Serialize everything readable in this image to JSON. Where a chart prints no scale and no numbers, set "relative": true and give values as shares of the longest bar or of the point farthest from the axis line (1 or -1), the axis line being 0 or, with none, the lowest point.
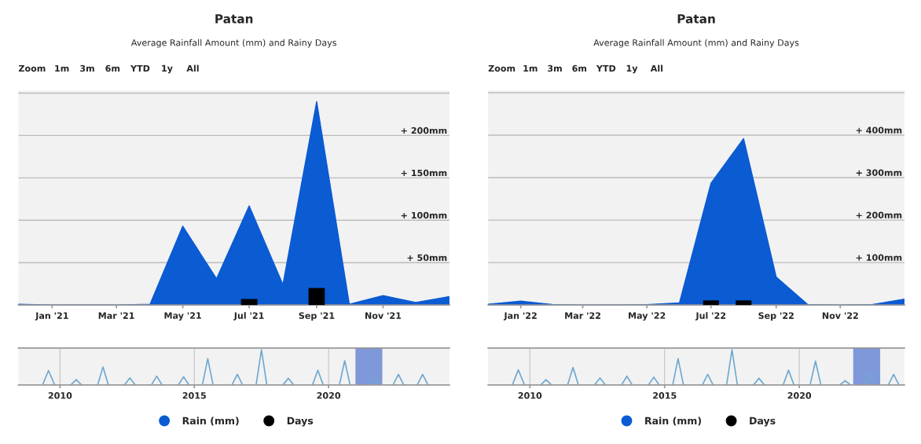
{
  "chart_data": [
    {
      "type": "area",
      "title": "Patan",
      "subtitle": "Average Rainfall Amount (mm) and Rainy Days",
      "annotations": [
        "Zoom",
        "1m",
        "3m",
        "6m",
        "YTD",
        "1y",
        "All"
      ],
      "x": [
        "2020-12",
        "2021-01",
        "2021-02",
        "2021-03",
        "2021-04",
        "2021-05",
        "2021-06",
        "2021-07",
        "2021-08",
        "2021-09",
        "2021-10",
        "2021-11",
        "2021-12",
        "2022-01"
      ],
      "series": [
        {
          "name": "Rain (mm)",
          "type": "area",
          "color": "#0b5bd3",
          "values": [
            1,
            0,
            0,
            0,
            1,
            93,
            31,
            117,
            24,
            240,
            1,
            11,
            3,
            10
          ]
        },
        {
          "name": "Days",
          "type": "bar",
          "color": "#000000",
          "values": [
            null,
            null,
            null,
            null,
            null,
            null,
            null,
            7,
            null,
            20,
            null,
            null,
            null,
            null
          ]
        }
      ],
      "xlim": [
        "2020-12",
        "2022-01"
      ],
      "xticks": [
        {
          "value": "2021-01",
          "label": "Jan '21"
        },
        {
          "value": "2021-03",
          "label": "Mar '21"
        },
        {
          "value": "2021-05",
          "label": "May '21"
        },
        {
          "value": "2021-07",
          "label": "Jul '21"
        },
        {
          "value": "2021-09",
          "label": "Sep '21"
        },
        {
          "value": "2021-11",
          "label": "Nov '21"
        }
      ],
      "ylim": [
        0,
        253
      ],
      "yticks": [
        {
          "value": 0,
          "label": null
        },
        {
          "value": 50,
          "label": "+ 50mm"
        },
        {
          "value": 100,
          "label": "+ 100mm"
        },
        {
          "value": 150,
          "label": "+ 150mm"
        },
        {
          "value": 200,
          "label": "+ 200mm"
        },
        {
          "value": 250,
          "label": null
        }
      ],
      "grid": "y",
      "legend": "bottom"
    },
    {
      "type": "line",
      "relative": true,
      "tick_labels": "x",
      "grid": "x",
      "series": [
        {
          "color": "#6fa8d0",
          "x": [
            2008.45,
            2009.35,
            2009.57,
            2009.8,
            2010.4,
            2010.6,
            2010.8,
            2011.4,
            2011.6,
            2011.8,
            2012.4,
            2012.6,
            2012.8,
            2013.4,
            2013.6,
            2013.8,
            2014.4,
            2014.6,
            2014.8,
            2015.3,
            2015.5,
            2015.7,
            2016.4,
            2016.6,
            2016.8,
            2017.3,
            2017.5,
            2017.7,
            2018.3,
            2018.5,
            2018.7,
            2019.4,
            2019.6,
            2019.8,
            2020.4,
            2020.6,
            2020.8,
            2021.5,
            2021.7,
            2021.9,
            2022.4,
            2022.6,
            2022.8,
            2023.3,
            2023.5,
            2023.7,
            2024.5
          ],
          "values": [
            0,
            0,
            0.41,
            0,
            0,
            0.15,
            0,
            0,
            0.51,
            0,
            0,
            0.2,
            0,
            0,
            0.25,
            0,
            0,
            0.23,
            0,
            0,
            0.75,
            0,
            0,
            0.3,
            0,
            0,
            1.0,
            0,
            0,
            0.19,
            0,
            0,
            0.42,
            0,
            0,
            0.69,
            0,
            0,
            0.2,
            0,
            0,
            0.3,
            0,
            0,
            0.3,
            0,
            0
          ]
        }
      ],
      "xlim": [
        2008.45,
        2024.5
      ],
      "xticks": [
        2010,
        2015,
        2020
      ],
      "bands": [
        {
          "axis": "x",
          "from": 2021,
          "to": 2022,
          "color": "#6b88d6"
        }
      ]
    },
    {
      "type": "area",
      "title": "Patan",
      "subtitle": "Average Rainfall Amount (mm) and Rainy Days",
      "annotations": [
        "Zoom",
        "1m",
        "3m",
        "6m",
        "YTD",
        "1y",
        "All"
      ],
      "x": [
        "2021-12",
        "2022-01",
        "2022-02",
        "2022-03",
        "2022-04",
        "2022-05",
        "2022-06",
        "2022-07",
        "2022-08",
        "2022-09",
        "2022-10",
        "2022-11",
        "2022-12",
        "2023-01"
      ],
      "series": [
        {
          "name": "Rain (mm)",
          "type": "area",
          "color": "#0b5bd3",
          "values": [
            2,
            9,
            1,
            0,
            0,
            1,
            5,
            287,
            392,
            66,
            1,
            0,
            1,
            14
          ]
        },
        {
          "name": "Days",
          "type": "bar",
          "color": "#000000",
          "values": [
            null,
            null,
            null,
            null,
            null,
            null,
            null,
            11,
            11,
            null,
            null,
            null,
            null,
            null
          ]
        }
      ],
      "xlim": [
        "2021-12",
        "2023-01"
      ],
      "xticks": [
        {
          "value": "2022-01",
          "label": "Jan '22"
        },
        {
          "value": "2022-03",
          "label": "Mar '22"
        },
        {
          "value": "2022-05",
          "label": "May '22"
        },
        {
          "value": "2022-07",
          "label": "Jul '22"
        },
        {
          "value": "2022-09",
          "label": "Sep '22"
        },
        {
          "value": "2022-11",
          "label": "Nov '22"
        }
      ],
      "ylim": [
        0,
        505
      ],
      "yticks": [
        {
          "value": 0,
          "label": null
        },
        {
          "value": 100,
          "label": "+ 100mm"
        },
        {
          "value": 200,
          "label": "+ 200mm"
        },
        {
          "value": 300,
          "label": "+ 300mm"
        },
        {
          "value": 400,
          "label": "+ 400mm"
        },
        {
          "value": 500,
          "label": null
        }
      ],
      "grid": "y",
      "legend": "bottom"
    },
    {
      "type": "line",
      "relative": true,
      "tick_labels": "x",
      "grid": "x",
      "series": [
        {
          "color": "#6fa8d0",
          "x": [
            2008.45,
            2009.35,
            2009.57,
            2009.8,
            2010.4,
            2010.6,
            2010.8,
            2011.4,
            2011.6,
            2011.8,
            2012.4,
            2012.6,
            2012.8,
            2013.4,
            2013.6,
            2013.8,
            2014.4,
            2014.6,
            2014.8,
            2015.3,
            2015.5,
            2015.7,
            2016.4,
            2016.6,
            2016.8,
            2017.3,
            2017.5,
            2017.7,
            2018.3,
            2018.5,
            2018.7,
            2019.4,
            2019.6,
            2019.8,
            2020.4,
            2020.6,
            2020.8,
            2021.5,
            2021.7,
            2021.9,
            2022.4,
            2022.6,
            2022.8,
            2023.3,
            2023.5,
            2023.7,
            2023.9
          ],
          "values": [
            0,
            0,
            0.43,
            0,
            0,
            0.15,
            0,
            0,
            0.5,
            0,
            0,
            0.2,
            0,
            0,
            0.25,
            0,
            0,
            0.22,
            0,
            0,
            0.75,
            0,
            0,
            0.3,
            0,
            0,
            1.0,
            0,
            0,
            0.19,
            0,
            0,
            0.42,
            0,
            0,
            0.68,
            0,
            0,
            0.12,
            0,
            0,
            0.32,
            0,
            0,
            0.3,
            0,
            0
          ]
        }
      ],
      "xlim": [
        2008.45,
        2023.9
      ],
      "xticks": [
        2010,
        2015,
        2020
      ],
      "bands": [
        {
          "axis": "x",
          "from": 2022,
          "to": 2023,
          "color": "#6b88d6"
        }
      ]
    }
  ]
}
